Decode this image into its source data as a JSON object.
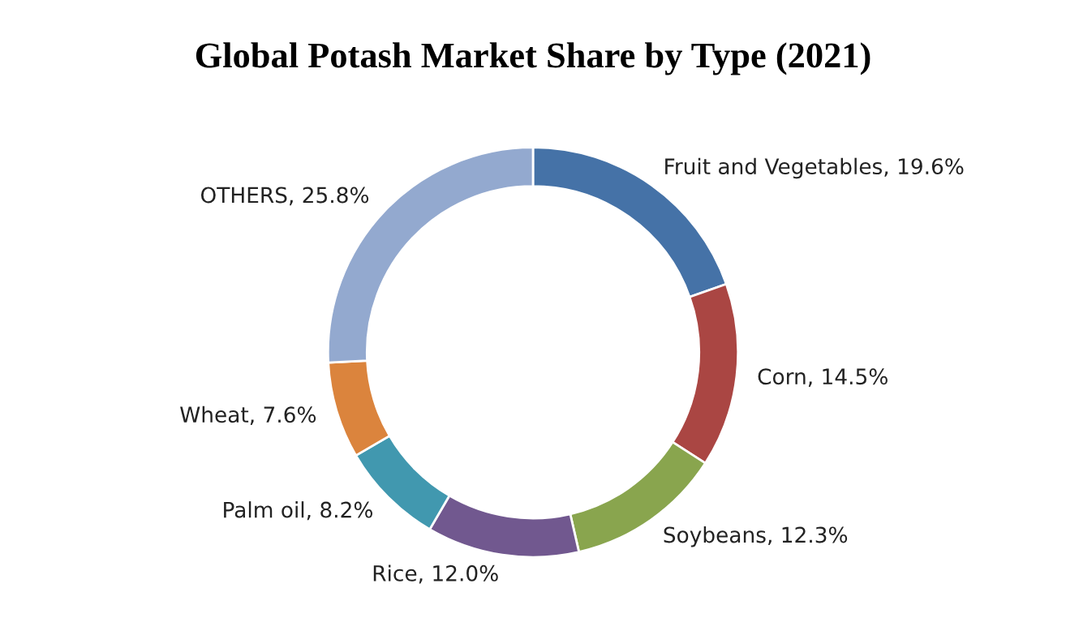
{
  "chart_data": {
    "type": "donut",
    "title": "Global Potash Market Share by Type (2021)",
    "categories": [
      "Fruit and Vegetables",
      "Corn",
      "Soybeans",
      "Rice",
      "Palm oil",
      "Wheat",
      "OTHERS"
    ],
    "values": [
      19.6,
      14.5,
      12.3,
      12.0,
      8.2,
      7.6,
      25.8
    ],
    "value_labels": [
      "19.6%",
      "14.5%",
      "12.3%",
      "12.0%",
      "8.2%",
      "7.6%",
      "25.8%"
    ],
    "colors": [
      "#4572a7",
      "#aa4643",
      "#89a54e",
      "#71588f",
      "#4198af",
      "#db843d",
      "#93a9cf"
    ],
    "legend": false
  }
}
